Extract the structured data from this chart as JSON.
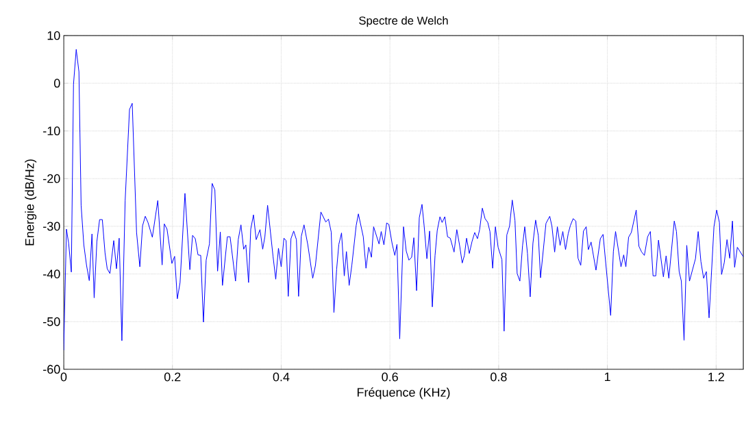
{
  "chart_data": {
    "type": "line",
    "title": "Spectre de Welch",
    "xlabel": "Fréquence (KHz)",
    "ylabel": "Energie (dB/Hz)",
    "xlim": [
      0,
      1.25
    ],
    "ylim": [
      -60,
      10
    ],
    "xticks": [
      0,
      0.2,
      0.4,
      0.6,
      0.8,
      1,
      1.2
    ],
    "yticks": [
      -60,
      -50,
      -40,
      -30,
      -20,
      -10,
      0,
      10
    ],
    "grid": true,
    "marker": "none",
    "line_style": "solid",
    "series": [
      {
        "color": "#0000ff",
        "x": [
          0,
          0.005,
          0.009,
          0.014,
          0.018,
          0.023,
          0.028,
          0.032,
          0.037,
          0.042,
          0.047,
          0.052,
          0.056,
          0.061,
          0.066,
          0.071,
          0.076,
          0.08,
          0.085,
          0.092,
          0.097,
          0.102,
          0.107,
          0.113,
          0.121,
          0.126,
          0.134,
          0.14,
          0.145,
          0.15,
          0.155,
          0.163,
          0.173,
          0.181,
          0.185,
          0.19,
          0.199,
          0.204,
          0.209,
          0.214,
          0.223,
          0.232,
          0.237,
          0.242,
          0.247,
          0.252,
          0.257,
          0.262,
          0.268,
          0.273,
          0.278,
          0.283,
          0.288,
          0.292,
          0.301,
          0.306,
          0.316,
          0.321,
          0.326,
          0.331,
          0.335,
          0.34,
          0.344,
          0.349,
          0.354,
          0.361,
          0.366,
          0.37,
          0.375,
          0.385,
          0.39,
          0.395,
          0.4,
          0.405,
          0.409,
          0.413,
          0.418,
          0.423,
          0.428,
          0.432,
          0.437,
          0.442,
          0.449,
          0.458,
          0.463,
          0.473,
          0.482,
          0.487,
          0.492,
          0.497,
          0.502,
          0.506,
          0.511,
          0.516,
          0.52,
          0.525,
          0.53,
          0.538,
          0.542,
          0.551,
          0.556,
          0.561,
          0.566,
          0.57,
          0.58,
          0.584,
          0.589,
          0.594,
          0.598,
          0.604,
          0.609,
          0.613,
          0.618,
          0.625,
          0.63,
          0.635,
          0.64,
          0.644,
          0.649,
          0.654,
          0.659,
          0.663,
          0.668,
          0.673,
          0.678,
          0.683,
          0.687,
          0.692,
          0.696,
          0.701,
          0.706,
          0.711,
          0.718,
          0.723,
          0.728,
          0.733,
          0.737,
          0.741,
          0.746,
          0.751,
          0.756,
          0.761,
          0.765,
          0.77,
          0.775,
          0.78,
          0.784,
          0.789,
          0.794,
          0.799,
          0.806,
          0.81,
          0.815,
          0.82,
          0.825,
          0.83,
          0.834,
          0.839,
          0.844,
          0.848,
          0.853,
          0.858,
          0.863,
          0.868,
          0.873,
          0.877,
          0.887,
          0.894,
          0.898,
          0.903,
          0.908,
          0.913,
          0.918,
          0.923,
          0.928,
          0.932,
          0.937,
          0.942,
          0.946,
          0.951,
          0.956,
          0.961,
          0.965,
          0.97,
          0.979,
          0.987,
          0.992,
          1.006,
          1.011,
          1.015,
          1.025,
          1.03,
          1.034,
          1.039,
          1.044,
          1.053,
          1.058,
          1.063,
          1.068,
          1.074,
          1.079,
          1.084,
          1.089,
          1.094,
          1.103,
          1.108,
          1.113,
          1.123,
          1.127,
          1.132,
          1.136,
          1.141,
          1.146,
          1.151,
          1.162,
          1.167,
          1.172,
          1.177,
          1.182,
          1.187,
          1.196,
          1.201,
          1.206,
          1.21,
          1.215,
          1.22,
          1.225,
          1.23,
          1.234,
          1.239,
          1.25
        ],
        "values": [
          -56,
          -30.6,
          -33.5,
          -39.6,
          -0.2,
          7.1,
          2.4,
          -25.6,
          -33.9,
          -38.2,
          -41.4,
          -31.6,
          -45,
          -33.2,
          -28.6,
          -28.6,
          -35.6,
          -38.9,
          -39.9,
          -33,
          -38.9,
          -32.5,
          -54,
          -24.6,
          -5.5,
          -4.2,
          -31.3,
          -38.5,
          -29.9,
          -27.9,
          -29.2,
          -32.3,
          -24.6,
          -38.1,
          -29.5,
          -30.6,
          -37.8,
          -36.3,
          -45.2,
          -41.8,
          -23.1,
          -39.1,
          -31.9,
          -32.6,
          -36,
          -36.1,
          -50.1,
          -37.1,
          -33.7,
          -21,
          -22.4,
          -39.4,
          -31.2,
          -42.4,
          -32.2,
          -32.2,
          -41.5,
          -32.8,
          -29.7,
          -34.8,
          -33.9,
          -41.8,
          -30.6,
          -27.6,
          -32.8,
          -30.7,
          -34.8,
          -32.2,
          -25.6,
          -36.3,
          -41.1,
          -34.6,
          -38.5,
          -32.5,
          -33,
          -44.7,
          -32.6,
          -31,
          -32.8,
          -44.7,
          -32.1,
          -29.7,
          -33.9,
          -40.9,
          -38.2,
          -27,
          -29.1,
          -28.5,
          -31.2,
          -48.1,
          -39,
          -33.8,
          -31.4,
          -40.4,
          -35.3,
          -42.4,
          -38.1,
          -29.8,
          -27.4,
          -32.2,
          -38.8,
          -34.4,
          -36.5,
          -30.1,
          -33.7,
          -31.1,
          -33.9,
          -29.3,
          -29.6,
          -33.6,
          -36.1,
          -33.8,
          -53.6,
          -30.1,
          -35.2,
          -37.1,
          -36.5,
          -32.4,
          -43.5,
          -28.2,
          -25.4,
          -30,
          -36.8,
          -31,
          -46.9,
          -36.1,
          -30.9,
          -28,
          -29.2,
          -28,
          -32.2,
          -32.5,
          -35.4,
          -30.7,
          -33.9,
          -37.7,
          -36.1,
          -32.5,
          -35.7,
          -33.2,
          -31.3,
          -32.6,
          -30.7,
          -26.2,
          -28.4,
          -29.2,
          -31.1,
          -38.8,
          -30.1,
          -34.4,
          -37,
          -52,
          -31.8,
          -30,
          -24.5,
          -28.8,
          -39.9,
          -41.5,
          -34,
          -30.1,
          -35.7,
          -44.8,
          -33.6,
          -28.7,
          -32,
          -40.8,
          -29.4,
          -27.9,
          -30,
          -35.4,
          -30.1,
          -34,
          -31.1,
          -34.9,
          -31.5,
          -29.8,
          -28.4,
          -28.9,
          -36.7,
          -38.2,
          -31,
          -30.1,
          -34.9,
          -33.3,
          -39.2,
          -32.6,
          -31.7,
          -48.7,
          -35.3,
          -31.1,
          -38.5,
          -36,
          -38.5,
          -32.3,
          -31.3,
          -26.6,
          -34.2,
          -35.4,
          -36.1,
          -32.2,
          -31.1,
          -40.4,
          -40.4,
          -32.9,
          -40.6,
          -36.2,
          -40.9,
          -28.9,
          -31.1,
          -39.5,
          -41.5,
          -53.9,
          -34,
          -41.5,
          -36.8,
          -31.1,
          -37.4,
          -40.9,
          -39.5,
          -49.2,
          -30.1,
          -26.6,
          -29.2,
          -40.1,
          -37.6,
          -32.8,
          -36.7,
          -28.9,
          -38.6,
          -34.4,
          -36.4
        ]
      }
    ]
  }
}
